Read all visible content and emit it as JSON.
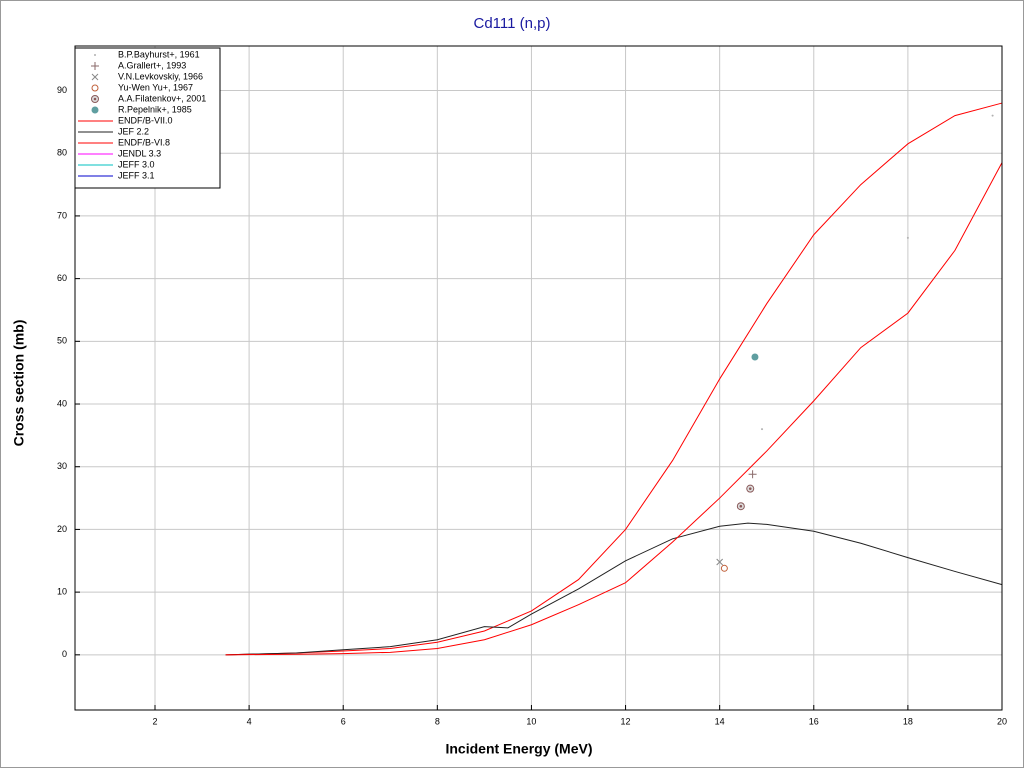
{
  "chart_data": {
    "type": "line",
    "title": "Cd111 (n,p)",
    "x_label": "Incident Energy (MeV)",
    "y_label": "Cross section (mb)",
    "xlim": [
      0.3,
      20
    ],
    "ylim": [
      -8.8,
      97.1
    ],
    "xticks": [
      2,
      4,
      6,
      8,
      10,
      12,
      14,
      16,
      18,
      20
    ],
    "yticks": [
      0,
      10,
      20,
      30,
      40,
      50,
      60,
      70,
      80,
      90
    ],
    "grid": true,
    "legend": "upper left",
    "series": [
      {
        "name": "B.P.Bayhurst+, 1961",
        "color": "#b0b0b0",
        "marker": "dot",
        "x": [
          14.9,
          18.0,
          19.8
        ],
        "values": [
          36,
          66.5,
          86
        ]
      },
      {
        "name": "A.Grallert+, 1993",
        "color": "#8a6a6a",
        "marker": "plus",
        "x": [
          14.7
        ],
        "values": [
          28.8
        ]
      },
      {
        "name": "V.N.Levkovskiy, 1966",
        "color": "#888888",
        "marker": "cross",
        "x": [
          14.0
        ],
        "values": [
          14.8
        ]
      },
      {
        "name": "Yu-Wen Yu+, 1967",
        "color": "#c0603a",
        "marker": "circle",
        "x": [
          14.1
        ],
        "values": [
          13.8
        ]
      },
      {
        "name": "A.A.Filatenkov+, 2001",
        "color": "#8a5a5a",
        "marker": "hatched",
        "x": [
          14.45,
          14.65
        ],
        "values": [
          23.7,
          26.5
        ]
      },
      {
        "name": "R.Pepelnik+, 1985",
        "color": "#5f9ea0",
        "marker": "filled",
        "x": [
          14.75
        ],
        "values": [
          47.5
        ]
      },
      {
        "name": "ENDF/B-VII.0",
        "color": "#ff0000",
        "x": [
          3.5,
          5,
          6,
          7,
          8,
          9,
          10,
          11,
          12,
          13,
          14,
          15,
          16,
          17,
          18,
          19,
          20
        ],
        "values": [
          0,
          0.3,
          0.6,
          1,
          2,
          3.8,
          7,
          12,
          20,
          31,
          44,
          56,
          67,
          75,
          81.5,
          86,
          88
        ]
      },
      {
        "name": "JEF 2.2",
        "color": "#222222",
        "x": [
          3.5,
          5,
          6,
          7,
          8,
          9,
          9.5,
          10,
          11,
          12,
          13,
          14,
          14.6,
          15,
          16,
          17,
          18,
          19,
          20
        ],
        "values": [
          0,
          0.3,
          0.8,
          1.3,
          2.4,
          4.5,
          4.3,
          6.5,
          10.5,
          15,
          18.5,
          20.5,
          21,
          20.8,
          19.7,
          17.8,
          15.5,
          13.3,
          11.2
        ]
      },
      {
        "name": "ENDF/B-VI.8",
        "color": "#ff0000",
        "x": [
          3.5,
          5,
          6,
          7,
          8,
          9,
          10,
          11,
          12,
          13,
          14,
          15,
          16,
          17,
          18,
          19,
          20
        ],
        "values": [
          0,
          0.1,
          0.2,
          0.4,
          1,
          2.4,
          4.8,
          8,
          11.5,
          18,
          25,
          32.5,
          40.5,
          49,
          54.5,
          64.5,
          78.5
        ]
      },
      {
        "name": "JENDL 3.3",
        "color": "#ff00ff",
        "x": [],
        "values": []
      },
      {
        "name": "JEFF 3.0",
        "color": "#00c0c0",
        "x": [],
        "values": []
      },
      {
        "name": "JEFF 3.1",
        "color": "#0000cc",
        "x": [],
        "values": []
      }
    ]
  }
}
